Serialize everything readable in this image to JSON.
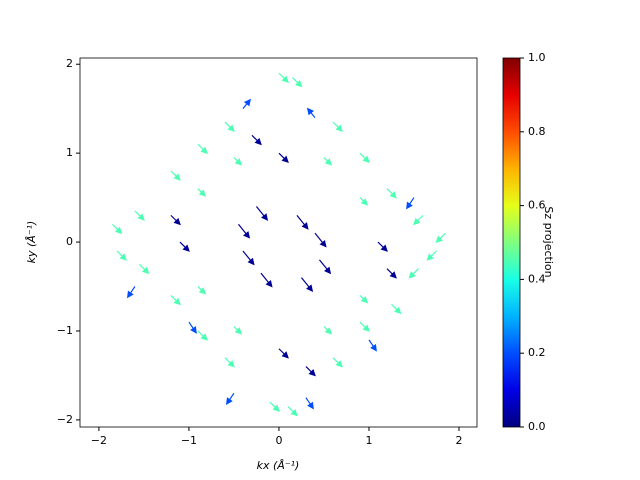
{
  "chart_data": {
    "type": "quiver",
    "xlabel": "kx  (Å⁻¹)",
    "ylabel": "ky  (Å⁻¹)",
    "colorbar_label": "Sz projection",
    "colormap": "jet",
    "xlim": [
      -2.21,
      2.2
    ],
    "ylim": [
      -2.08,
      2.07
    ],
    "clim": [
      0,
      1
    ],
    "xticks": [
      {
        "value": -2,
        "label": "−2"
      },
      {
        "value": -1,
        "label": "−1"
      },
      0,
      1,
      2
    ],
    "yticks": [
      {
        "value": -2,
        "label": "−2"
      },
      {
        "value": -1,
        "label": "−1"
      },
      0,
      1,
      2
    ],
    "cticks": [
      {
        "value": 0,
        "label": "0.0"
      },
      0.2,
      0.4,
      0.6,
      0.8,
      {
        "value": 1,
        "label": "1.0"
      }
    ],
    "x": [
      -1.85,
      -1.8,
      -1.6,
      -1.55,
      1.85,
      1.75,
      1.6,
      1.55,
      0,
      0.15,
      -0.1,
      0.1,
      -0.6,
      -0.9,
      -1.2,
      0.6,
      0.9,
      1.2,
      -0.6,
      -0.9,
      -1.2,
      0.6,
      0.9,
      1.25,
      -0.9,
      -0.9,
      0.9,
      0.9,
      -0.5,
      0.5,
      -0.5,
      0.5,
      -0.45,
      -0.25,
      0.25,
      0.45,
      0.2,
      0.4,
      -0.2,
      -0.4,
      0,
      0,
      -1.1,
      1.1,
      -0.3,
      0.3,
      -1.2,
      1.2,
      -0.4,
      0.4,
      -1.0,
      1.5,
      -1.6,
      -0.5,
      0.3,
      1.0
    ],
    "y": [
      0.2,
      -0.1,
      0.35,
      -0.25,
      0.1,
      -0.1,
      0.3,
      -0.3,
      1.9,
      1.85,
      -1.8,
      -1.85,
      1.35,
      1.1,
      0.8,
      1.35,
      1.0,
      0.6,
      -1.3,
      -1.0,
      -0.6,
      -1.3,
      -0.9,
      -0.7,
      0.6,
      -0.5,
      0.5,
      -0.6,
      0.95,
      0.95,
      -0.95,
      -0.95,
      0.2,
      0.4,
      -0.4,
      -0.2,
      0.3,
      0.1,
      -0.35,
      -0.1,
      1.0,
      -1.2,
      0,
      0,
      1.2,
      -1.4,
      0.3,
      -0.3,
      1.5,
      1.4,
      -0.9,
      0.5,
      -0.5,
      -1.7,
      -1.75,
      -1.1
    ],
    "u": [
      0.1,
      0.1,
      0.1,
      0.1,
      -0.1,
      -0.1,
      -0.1,
      -0.1,
      0.1,
      0.1,
      0.1,
      0.1,
      0.1,
      0.1,
      0.1,
      0.1,
      0.1,
      0.1,
      0.1,
      0.1,
      0.1,
      0.1,
      0.1,
      0.1,
      0.08,
      0.08,
      0.08,
      0.08,
      0.08,
      0.08,
      0.08,
      0.08,
      0.12,
      0.12,
      0.12,
      0.12,
      0.12,
      0.12,
      0.12,
      0.12,
      0.1,
      0.1,
      0.1,
      0.1,
      0.1,
      0.1,
      0.1,
      0.1,
      0.08,
      -0.08,
      0.08,
      -0.08,
      -0.08,
      -0.08,
      0.08,
      0.08
    ],
    "v": [
      -0.1,
      -0.1,
      -0.1,
      -0.1,
      -0.1,
      -0.1,
      -0.1,
      -0.1,
      -0.1,
      -0.1,
      -0.1,
      -0.1,
      -0.1,
      -0.1,
      -0.1,
      -0.1,
      -0.1,
      -0.1,
      -0.1,
      -0.1,
      -0.1,
      -0.1,
      -0.1,
      -0.1,
      -0.08,
      -0.08,
      -0.08,
      -0.08,
      -0.08,
      -0.08,
      -0.08,
      -0.08,
      -0.15,
      -0.15,
      -0.15,
      -0.15,
      -0.15,
      -0.15,
      -0.15,
      -0.15,
      -0.1,
      -0.1,
      -0.1,
      -0.1,
      -0.1,
      -0.1,
      -0.1,
      -0.1,
      0.1,
      0.1,
      -0.12,
      -0.12,
      -0.12,
      -0.12,
      -0.12,
      -0.12
    ],
    "c": [
      0.45,
      0.45,
      0.45,
      0.45,
      0.45,
      0.45,
      0.45,
      0.45,
      0.45,
      0.45,
      0.45,
      0.45,
      0.45,
      0.45,
      0.45,
      0.45,
      0.45,
      0.45,
      0.45,
      0.45,
      0.45,
      0.45,
      0.45,
      0.45,
      0.45,
      0.45,
      0.45,
      0.45,
      0.45,
      0.45,
      0.45,
      0.45,
      0.02,
      0.02,
      0.02,
      0.02,
      0.02,
      0.02,
      0.02,
      0.02,
      0.02,
      0.02,
      0.02,
      0.02,
      0.02,
      0.02,
      0.02,
      0.02,
      0.2,
      0.2,
      0.2,
      0.2,
      0.2,
      0.2,
      0.2,
      0.2
    ]
  }
}
